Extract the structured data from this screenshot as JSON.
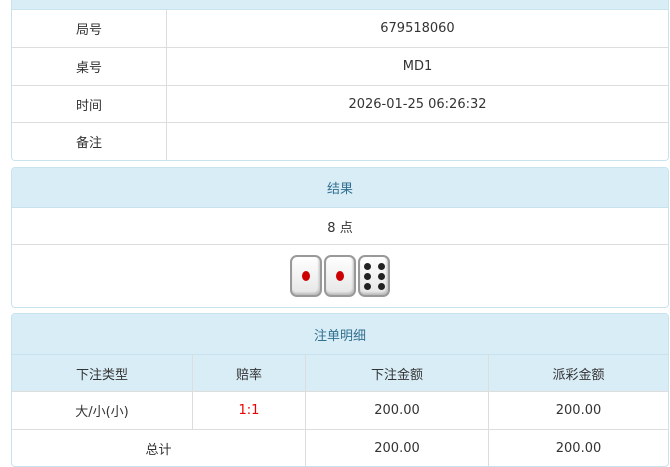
{
  "info": {
    "rows": [
      {
        "label": "局号",
        "value": "679518060"
      },
      {
        "label": "桌号",
        "value": "MD1"
      },
      {
        "label": "时间",
        "value": "2026-01-25 06:26:32"
      },
      {
        "label": "备注",
        "value": ""
      }
    ]
  },
  "result": {
    "title": "结果",
    "points": "8 点",
    "dice": [
      1,
      1,
      6
    ]
  },
  "bets": {
    "title": "注单明细",
    "columns": [
      "下注类型",
      "赔率",
      "下注金额",
      "派彩金额"
    ],
    "rows": [
      {
        "type": "大/小(小)",
        "odds": "1:1",
        "amount": "200.00",
        "payout": "200.00"
      }
    ],
    "total": {
      "label": "总计",
      "amount": "200.00",
      "payout": "200.00"
    },
    "odds_color": "#ee0000"
  }
}
